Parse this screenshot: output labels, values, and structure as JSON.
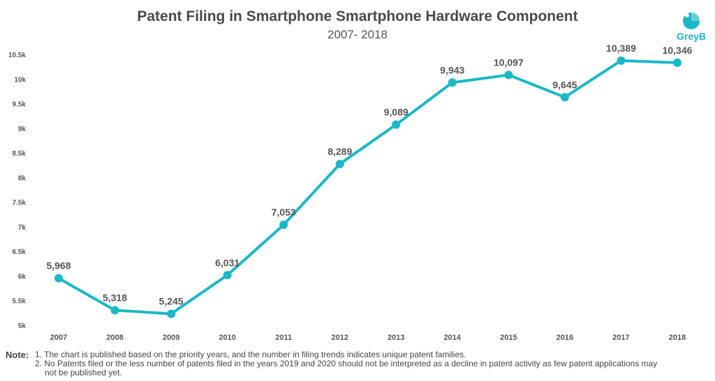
{
  "header": {
    "title": "Patent Filing in Smartphone Smartphone Hardware Component",
    "subtitle": "2007- 2018",
    "logo_text": "GreyB"
  },
  "colors": {
    "line": "#1ab8c8",
    "label": "#555555"
  },
  "chart_data": {
    "type": "line",
    "title": "Patent Filing in Smartphone Smartphone Hardware Component",
    "subtitle": "2007- 2018",
    "xlabel": "",
    "ylabel": "",
    "categories": [
      "2007",
      "2008",
      "2009",
      "2010",
      "2011",
      "2012",
      "2013",
      "2014",
      "2015",
      "2016",
      "2017",
      "2018"
    ],
    "values": [
      5968,
      5318,
      5245,
      6031,
      7053,
      8289,
      9089,
      9943,
      10097,
      9645,
      10389,
      10346
    ],
    "value_labels": [
      "5,968",
      "5,318",
      "5,245",
      "6,031",
      "7,053",
      "8,289",
      "9,089",
      "9,943",
      "10,097",
      "9,645",
      "10,389",
      "10,346"
    ],
    "ylim": [
      5000,
      10500
    ],
    "yticks": [
      5000,
      5500,
      6000,
      6500,
      7000,
      7500,
      8000,
      8500,
      9000,
      9500,
      10000,
      10500
    ],
    "ytick_labels": [
      "5k",
      "5.5k",
      "6k",
      "6.5k",
      "7k",
      "7.5k",
      "8k",
      "8.5k",
      "9k",
      "9.5k",
      "10k",
      "10.5k"
    ],
    "grid": false,
    "legend": "none"
  },
  "notes": {
    "label": "Note:",
    "lines": [
      "1. The chart is published based on the priority years, and the number in filing trends indicates unique patent families.",
      "2. No Patents filed or the less number of patents filed in the years 2019 and 2020 should not be interpreted as a decline in patent activity as few patent applications may",
      "not be published yet."
    ]
  }
}
